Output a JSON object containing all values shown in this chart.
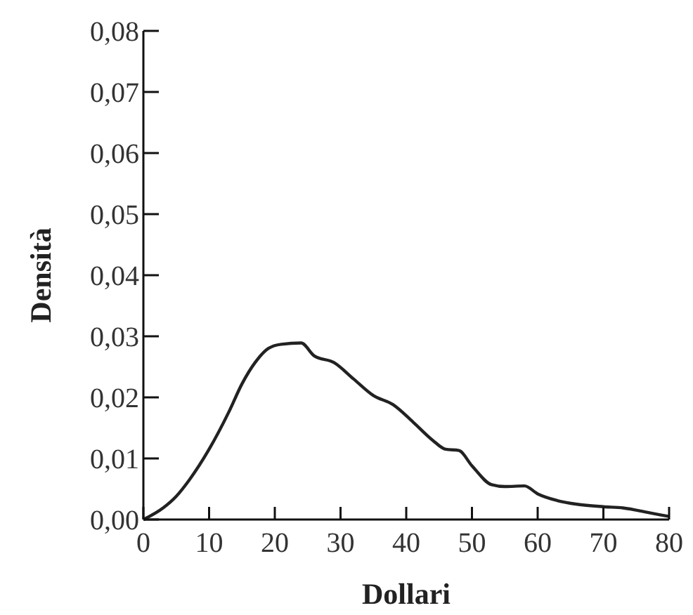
{
  "chart_data": {
    "type": "line",
    "xlabel": "Dollari",
    "ylabel": "Densità",
    "x": [
      0,
      3,
      5,
      7,
      10,
      13,
      15,
      17,
      19,
      21,
      24,
      26,
      29,
      32,
      35,
      38,
      41,
      44,
      46,
      48,
      50,
      53,
      55,
      58,
      60,
      63,
      66,
      70,
      73,
      77,
      80
    ],
    "series": [
      {
        "color": "#222222",
        "values": [
          0,
          0.0019,
          0.0038,
          0.0065,
          0.0115,
          0.0176,
          0.0222,
          0.0257,
          0.028,
          0.0287,
          0.0289,
          0.0268,
          0.0257,
          0.023,
          0.0203,
          0.0188,
          0.016,
          0.013,
          0.0115,
          0.0113,
          0.0088,
          0.0057,
          0.0054,
          0.0055,
          0.0042,
          0.0031,
          0.0025,
          0.0021,
          0.0019,
          0.0011,
          0.0005
        ]
      }
    ],
    "xlim": [
      0,
      80
    ],
    "xticks": [
      0,
      10,
      20,
      30,
      40,
      50,
      60,
      70,
      80
    ],
    "ylim": [
      0,
      0.08
    ],
    "yticks": [
      {
        "value": 0,
        "label": "0,00"
      },
      {
        "value": 0.01,
        "label": "0,01"
      },
      {
        "value": 0.02,
        "label": "0,02"
      },
      {
        "value": 0.03,
        "label": "0,03"
      },
      {
        "value": 0.04,
        "label": "0,04"
      },
      {
        "value": 0.05,
        "label": "0,05"
      },
      {
        "value": 0.06,
        "label": "0,06"
      },
      {
        "value": 0.07,
        "label": "0,07"
      },
      {
        "value": 0.08,
        "label": "0,08"
      }
    ],
    "grid": false,
    "marker": "none",
    "line_style": "solid"
  }
}
